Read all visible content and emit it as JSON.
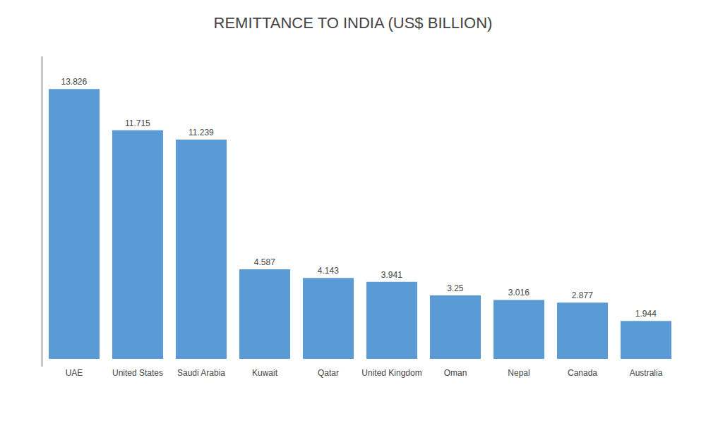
{
  "chart_data": {
    "type": "bar",
    "title": "REMITTANCE TO INDIA (US$ BILLION)",
    "categories": [
      "UAE",
      "United States",
      "Saudi Arabia",
      "Kuwait",
      "Qatar",
      "United Kingdom",
      "Oman",
      "Nepal",
      "Canada",
      "Australia"
    ],
    "values": [
      13.826,
      11.715,
      11.239,
      4.587,
      4.143,
      3.941,
      3.25,
      3.016,
      2.877,
      1.944
    ],
    "color": "#5b9bd5",
    "ylim": [
      -0.4,
      15.5
    ],
    "grid": false,
    "data_labels": true,
    "tick_labels": "x"
  }
}
